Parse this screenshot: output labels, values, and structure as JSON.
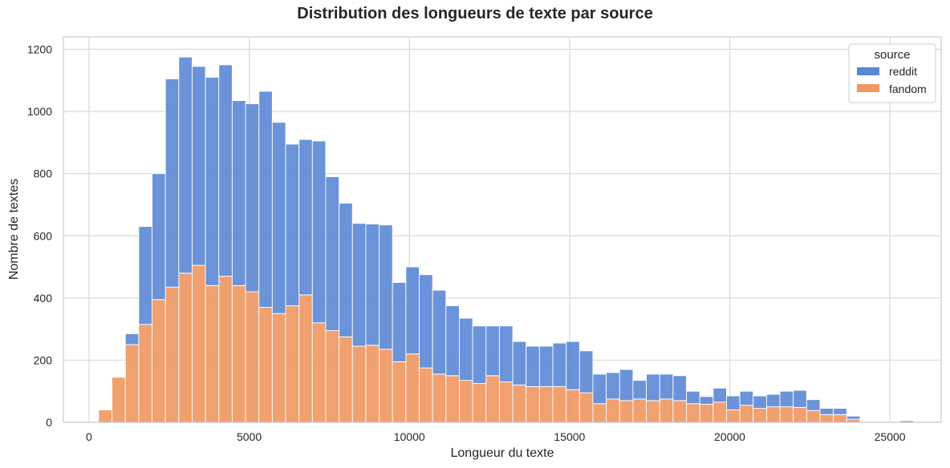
{
  "chart_data": {
    "type": "bar",
    "stacked": true,
    "title": "Distribution des longueurs de texte par source",
    "xlabel": "Longueur du texte",
    "ylabel": "Nombre de textes",
    "xlim": [
      -800,
      26600
    ],
    "ylim": [
      0,
      1240
    ],
    "x_ticks": [
      0,
      5000,
      10000,
      15000,
      20000,
      25000
    ],
    "y_ticks": [
      0,
      200,
      400,
      600,
      800,
      1000,
      1200
    ],
    "grid": true,
    "legend": {
      "title": "source",
      "placement": "top-right"
    },
    "bin_width": 417,
    "bin_start": 300,
    "series": [
      {
        "name": "fandom",
        "color": "#f0965f",
        "values": [
          40,
          145,
          250,
          315,
          395,
          435,
          480,
          505,
          440,
          470,
          440,
          420,
          370,
          350,
          375,
          410,
          320,
          295,
          275,
          245,
          248,
          235,
          195,
          220,
          175,
          155,
          150,
          135,
          125,
          150,
          130,
          120,
          115,
          115,
          115,
          105,
          95,
          60,
          75,
          70,
          75,
          70,
          75,
          70,
          60,
          58,
          65,
          40,
          55,
          45,
          50,
          50,
          48,
          38,
          25,
          25,
          10,
          0,
          0,
          0,
          0,
          0,
          0,
          0,
          0,
          0
        ]
      },
      {
        "name": "reddit",
        "color": "#5a87d6",
        "values": [
          0,
          0,
          35,
          315,
          405,
          670,
          695,
          640,
          670,
          680,
          595,
          605,
          695,
          615,
          520,
          500,
          585,
          495,
          430,
          395,
          390,
          400,
          255,
          280,
          300,
          270,
          225,
          200,
          185,
          160,
          180,
          140,
          130,
          130,
          140,
          155,
          135,
          95,
          85,
          100,
          60,
          85,
          80,
          80,
          40,
          25,
          45,
          45,
          45,
          40,
          40,
          50,
          55,
          35,
          20,
          20,
          10,
          0,
          0,
          0,
          5,
          0,
          0,
          0,
          0,
          0
        ]
      }
    ]
  },
  "colors": {
    "grid": "#d9d9d9",
    "frame": "#cccccc",
    "background": "#ffffff"
  }
}
